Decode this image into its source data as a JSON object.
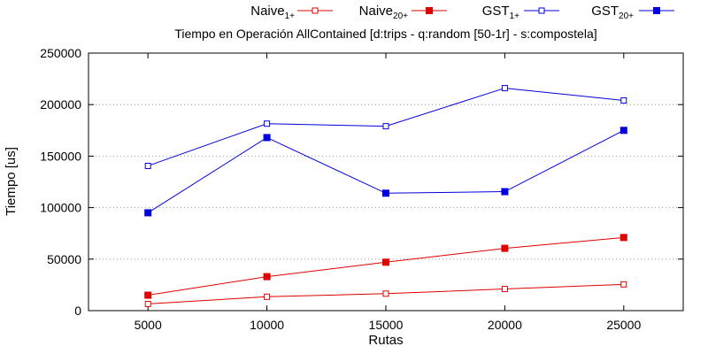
{
  "chart_data": {
    "type": "line",
    "title": "Tiempo en Operación AllContained [d:trips - q:random [50-1r] - s:compostela]",
    "xlabel": "Rutas",
    "ylabel": "Tiempo [us]",
    "x": [
      5000,
      10000,
      15000,
      20000,
      25000
    ],
    "xlim": [
      2500,
      27500
    ],
    "ylim": [
      0,
      250000
    ],
    "x_ticks": [
      "5000",
      "10000",
      "15000",
      "20000",
      "25000"
    ],
    "y_ticks": [
      "0",
      "50000",
      "100000",
      "150000",
      "200000",
      "250000"
    ],
    "grid": "horizontal-dotted",
    "legend_position": "top",
    "series": [
      {
        "name_base": "Naive",
        "name_sub": "1+",
        "color": "#e00000",
        "marker": "open-square",
        "values": [
          6500,
          13500,
          16500,
          21000,
          25500
        ]
      },
      {
        "name_base": "Naive",
        "name_sub": "20+",
        "color": "#e00000",
        "marker": "filled-square",
        "values": [
          15000,
          33000,
          47000,
          60500,
          71000
        ]
      },
      {
        "name_base": "GST",
        "name_sub": "1+",
        "color": "#0000dd",
        "marker": "open-square",
        "values": [
          140500,
          181500,
          179000,
          216000,
          204000
        ]
      },
      {
        "name_base": "GST",
        "name_sub": "20+",
        "color": "#0000dd",
        "marker": "filled-square",
        "values": [
          95000,
          168000,
          114000,
          115500,
          175000
        ]
      }
    ]
  }
}
